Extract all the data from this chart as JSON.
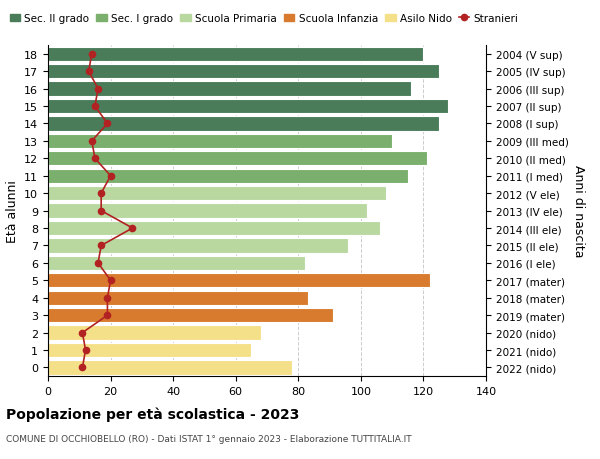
{
  "ages": [
    18,
    17,
    16,
    15,
    14,
    13,
    12,
    11,
    10,
    9,
    8,
    7,
    6,
    5,
    4,
    3,
    2,
    1,
    0
  ],
  "anni_nascita": [
    "2004 (V sup)",
    "2005 (IV sup)",
    "2006 (III sup)",
    "2007 (II sup)",
    "2008 (I sup)",
    "2009 (III med)",
    "2010 (II med)",
    "2011 (I med)",
    "2012 (V ele)",
    "2013 (IV ele)",
    "2014 (III ele)",
    "2015 (II ele)",
    "2016 (I ele)",
    "2017 (mater)",
    "2018 (mater)",
    "2019 (mater)",
    "2020 (nido)",
    "2021 (nido)",
    "2022 (nido)"
  ],
  "bar_values": [
    120,
    125,
    116,
    128,
    125,
    110,
    121,
    115,
    108,
    102,
    106,
    96,
    82,
    122,
    83,
    91,
    68,
    65,
    78
  ],
  "bar_colors": [
    "#4a7c59",
    "#4a7c59",
    "#4a7c59",
    "#4a7c59",
    "#4a7c59",
    "#7aaf6e",
    "#7aaf6e",
    "#7aaf6e",
    "#b8d8a0",
    "#b8d8a0",
    "#b8d8a0",
    "#b8d8a0",
    "#b8d8a0",
    "#d97b2e",
    "#d97b2e",
    "#d97b2e",
    "#f5e08a",
    "#f5e08a",
    "#f5e08a"
  ],
  "stranieri_values": [
    14,
    13,
    16,
    15,
    19,
    14,
    15,
    20,
    17,
    17,
    27,
    17,
    16,
    20,
    19,
    19,
    11,
    12,
    11
  ],
  "legend_labels": [
    "Sec. II grado",
    "Sec. I grado",
    "Scuola Primaria",
    "Scuola Infanzia",
    "Asilo Nido",
    "Stranieri"
  ],
  "legend_colors": [
    "#4a7c59",
    "#7aaf6e",
    "#b8d8a0",
    "#d97b2e",
    "#f5e08a",
    "#b22222"
  ],
  "ylabel_left": "Età alunni",
  "ylabel_right": "Anni di nascita",
  "title1": "Popolazione per età scolastica - 2023",
  "title2": "COMUNE DI OCCHIOBELLO (RO) - Dati ISTAT 1° gennaio 2023 - Elaborazione TUTTITALIA.IT",
  "xlim": [
    0,
    140
  ],
  "xticks": [
    0,
    20,
    40,
    60,
    80,
    100,
    120,
    140
  ],
  "background_color": "#ffffff",
  "grid_color": "#cccccc"
}
